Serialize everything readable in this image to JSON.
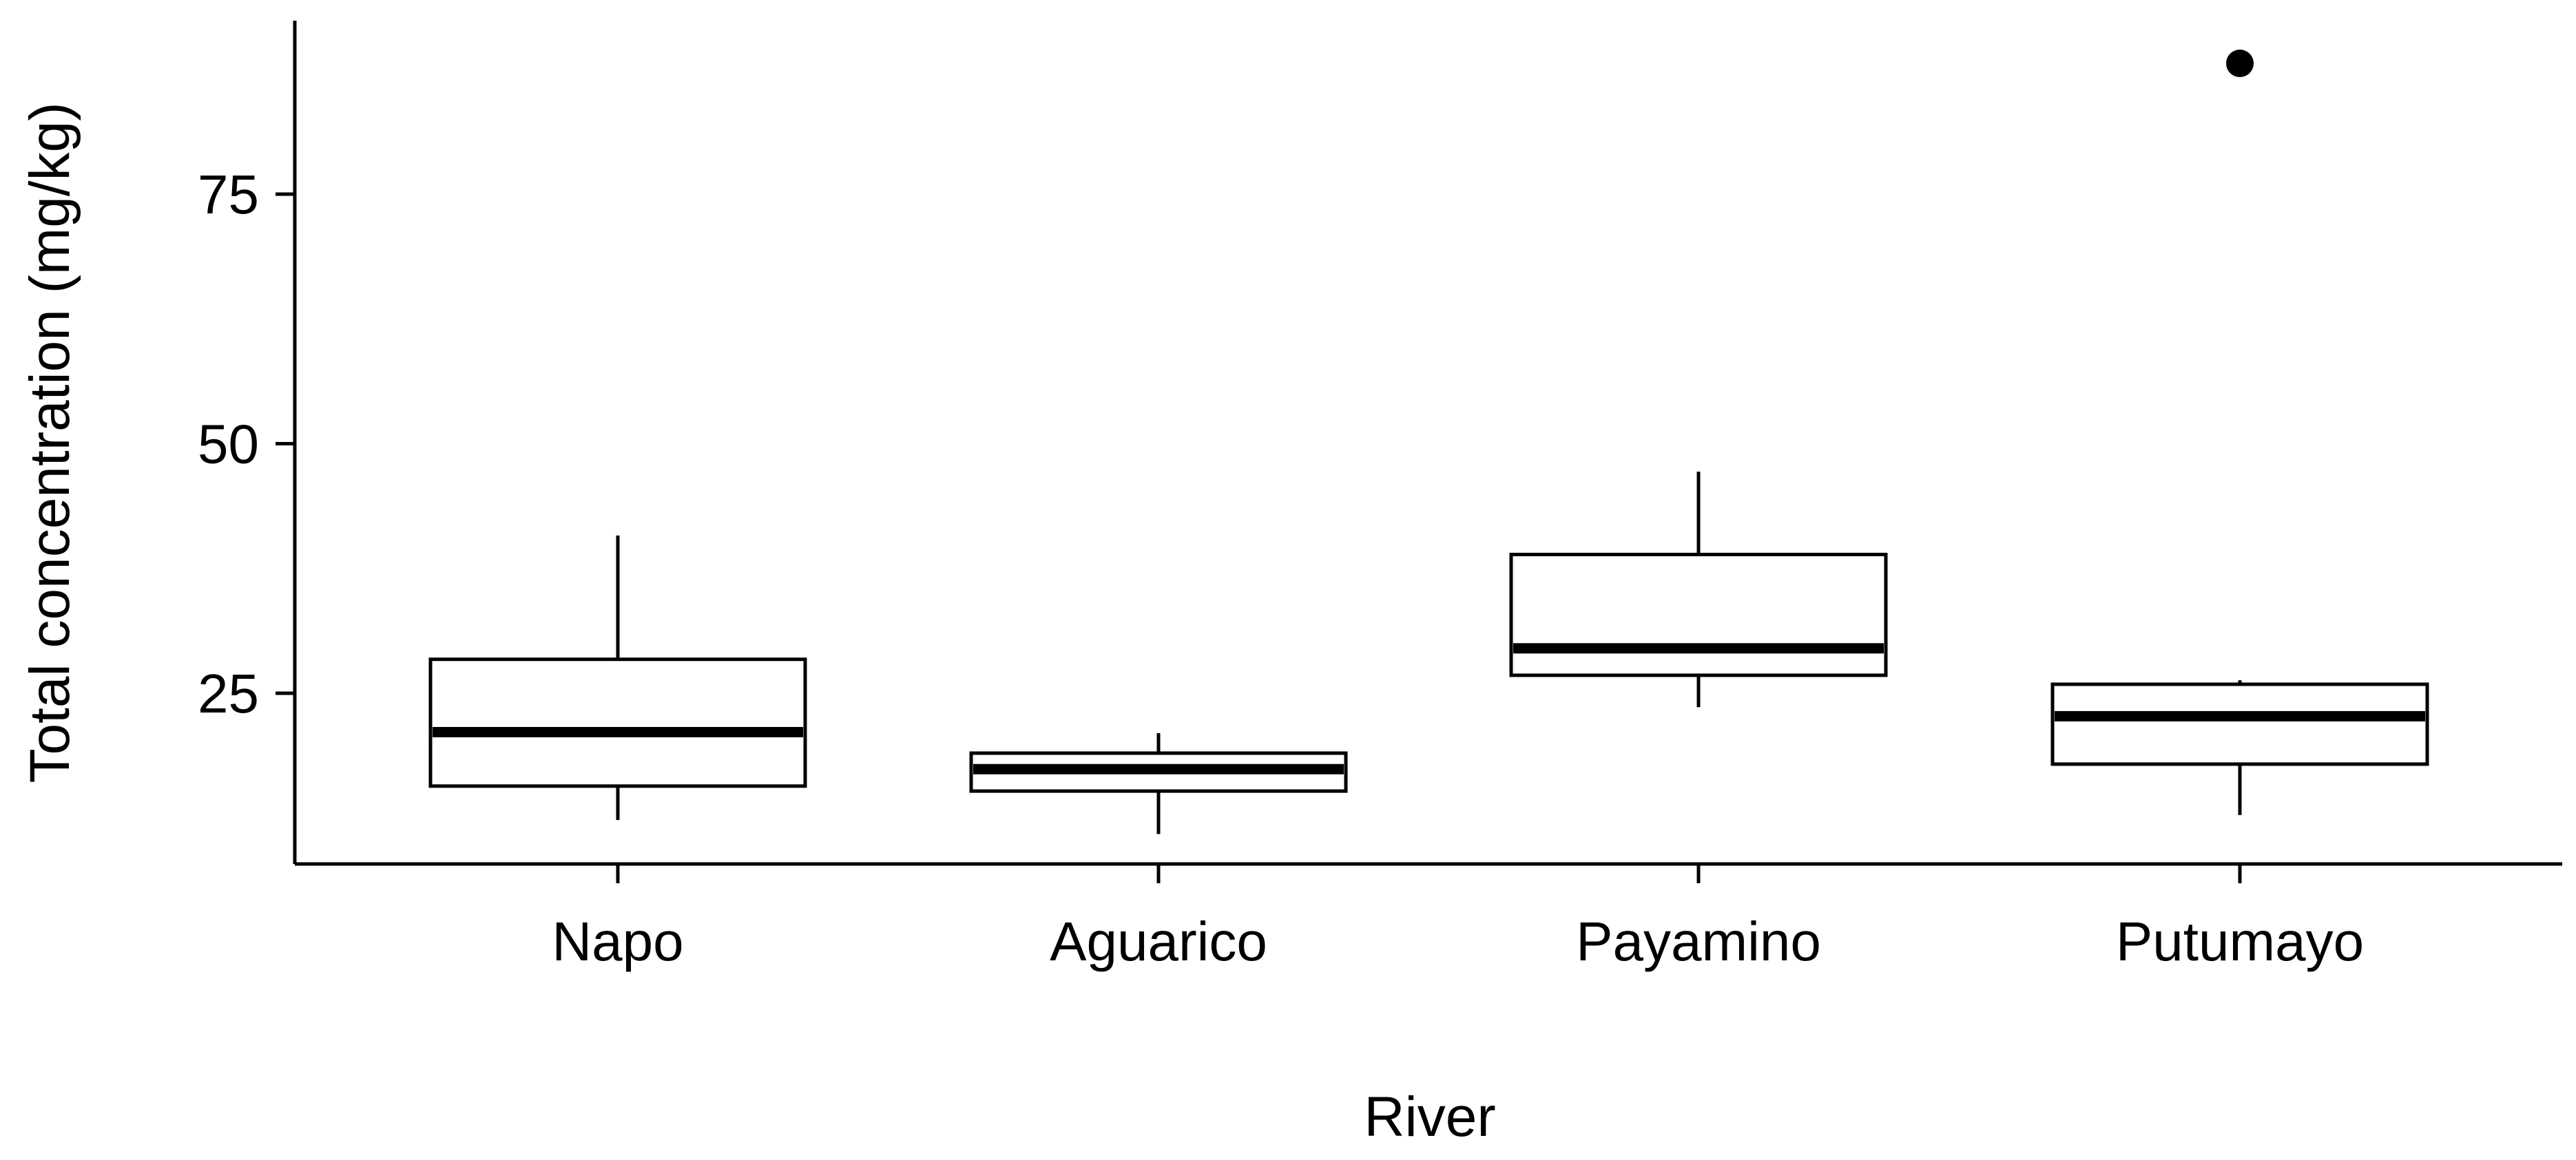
{
  "chart_data": {
    "type": "boxplot",
    "title": "",
    "xlabel": "River",
    "ylabel": "Total concentration (mg/kg)",
    "ylim": [
      8,
      93
    ],
    "yticks": [
      25,
      50,
      75
    ],
    "grid": false,
    "categories": [
      "Napo",
      "Aguarico",
      "Payamino",
      "Putumayo"
    ],
    "boxes": [
      {
        "category": "Napo",
        "whisker_low": 12.3,
        "q1": 15.7,
        "median": 21.1,
        "q3": 28.4,
        "whisker_high": 40.8,
        "outliers": []
      },
      {
        "category": "Aguarico",
        "whisker_low": 10.9,
        "q1": 15.2,
        "median": 17.4,
        "q3": 19.0,
        "whisker_high": 21.0,
        "outliers": []
      },
      {
        "category": "Payamino",
        "whisker_low": 23.6,
        "q1": 26.8,
        "median": 29.5,
        "q3": 38.9,
        "whisker_high": 47.2,
        "outliers": []
      },
      {
        "category": "Putumayo",
        "whisker_low": 12.8,
        "q1": 17.9,
        "median": 22.7,
        "q3": 25.9,
        "whisker_high": 26.3,
        "outliers": [
          88.1
        ]
      }
    ]
  }
}
